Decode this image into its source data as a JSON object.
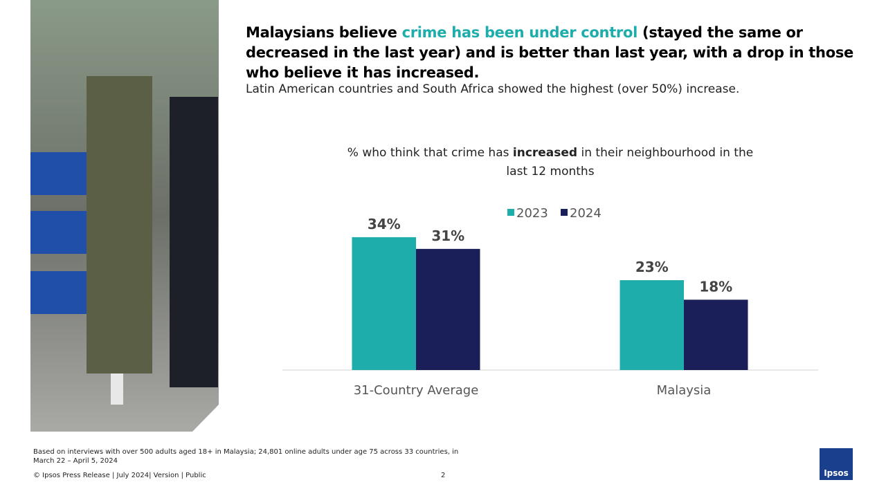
{
  "headline": {
    "parts": [
      "Malaysians believe ",
      "crime has been under control",
      " (stayed the same or decreased in the last year) and is better than last year, with a drop in those who believe it has increased."
    ]
  },
  "subtitle": "Latin American countries and South Africa showed the highest (over 50%) increase.",
  "chart_data": {
    "type": "bar",
    "title_parts": [
      "% who think that crime has",
      "increased",
      "in their neighbourhood  in the last 12 months"
    ],
    "categories": [
      "31-Country Average",
      "Malaysia"
    ],
    "series": [
      {
        "name": "2023",
        "color": "#1fadac",
        "values": [
          34,
          23
        ],
        "value_labels": [
          "34%",
          "23%"
        ]
      },
      {
        "name": "2024",
        "color": "#1a1f5a",
        "values": [
          31,
          18
        ],
        "value_labels": [
          "31%",
          "18%"
        ]
      }
    ]
  },
  "footer": {
    "note": "Based on interviews with over 500 adults aged 18+ in Malaysia; 24,801 online adults under age 75 across 33 countries, in March 22 – April 5, 2024",
    "copyright": "© Ipsos Press Release | July 2024| Version | Public",
    "page": "2",
    "logo": "Ipsos"
  }
}
